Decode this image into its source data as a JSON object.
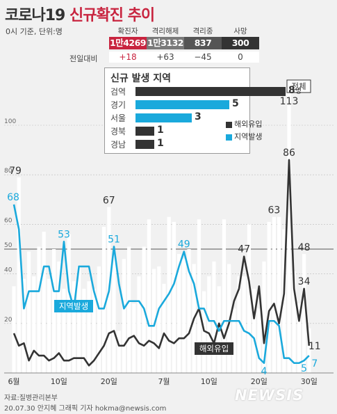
{
  "header": {
    "title_main": "코로나19 ",
    "title_red": "신규확진 추이",
    "subtitle": "0시 기준, 단위:명"
  },
  "stats": [
    {
      "label": "확진자",
      "value": "1만4269",
      "diff": "+18",
      "color": "#c8243f",
      "diff_color": "#c8243f"
    },
    {
      "label": "격리해제",
      "value": "1만3132",
      "diff": "+63",
      "color": "#7a7a7a",
      "diff_color": "#444444"
    },
    {
      "label": "격리중",
      "value": "837",
      "diff": "−45",
      "color": "#555555",
      "diff_color": "#444444"
    },
    {
      "label": "사망",
      "value": "300",
      "diff": "0",
      "color": "#333333",
      "diff_color": "#444444"
    }
  ],
  "diff_header": "전일대비",
  "regions": {
    "title": "신규 발생 지역",
    "unit": "명",
    "items": [
      {
        "name": "검역",
        "value": 8,
        "color": "#333333"
      },
      {
        "name": "경기",
        "value": 5,
        "color": "#1aa9dc"
      },
      {
        "name": "서울",
        "value": 3,
        "color": "#1aa9dc"
      },
      {
        "name": "경북",
        "value": 1,
        "color": "#333333"
      },
      {
        "name": "경남",
        "value": 1,
        "color": "#333333"
      }
    ]
  },
  "legend": {
    "overseas": "해외유입",
    "local": "지역발생"
  },
  "series_labels": {
    "total": "전체",
    "local": "지역발생",
    "overseas": "해외유입"
  },
  "colors": {
    "total_bar": "#ffffff",
    "local_line": "#1aa9dc",
    "overseas_line": "#333333",
    "accent_red": "#c8243f"
  },
  "footer": {
    "source": "자료:질병관리본부",
    "credit": "20.07.30 안지혜 그래픽 기자 hokma@newsis.com",
    "logo": "NEWSIS"
  },
  "chart_data": {
    "type": "bar",
    "period": "2020-06-01 to 2020-07-30",
    "x_tick_labels": [
      "6월",
      "10일",
      "20일",
      "7월",
      "10일",
      "20일",
      "30일"
    ],
    "x_tick_days": [
      1,
      10,
      20,
      31,
      40,
      50,
      60
    ],
    "y_tick_labels": [
      "100",
      "80",
      "60",
      "50",
      "40",
      "20"
    ],
    "y_ticks": [
      100,
      80,
      60,
      50,
      40,
      20
    ],
    "ylim": [
      0,
      120
    ],
    "reference_line": 50,
    "total_values": [
      35,
      79,
      38,
      49,
      39,
      51,
      57,
      38,
      50,
      45,
      34,
      56,
      37,
      43,
      34,
      37,
      34,
      43,
      59,
      67,
      48,
      17,
      46,
      51,
      28,
      39,
      51,
      62,
      42,
      43,
      36,
      63,
      61,
      48,
      46,
      50,
      44,
      62,
      33,
      39,
      45,
      35,
      62,
      44,
      26,
      39,
      39,
      60,
      34,
      26,
      45,
      61,
      63,
      63,
      58,
      113,
      41,
      28,
      48,
      18
    ],
    "local_values": [
      68,
      58,
      26,
      33,
      33,
      33,
      43,
      43,
      33,
      33,
      53,
      33,
      26,
      43,
      43,
      43,
      33,
      26,
      26,
      33,
      51,
      36,
      26,
      29,
      29,
      29,
      26,
      19,
      19,
      26,
      29,
      32,
      36,
      43,
      49,
      41,
      36,
      26,
      26,
      21,
      21,
      17,
      21,
      21,
      21,
      21,
      17,
      16,
      14,
      6,
      4,
      21,
      21,
      19,
      6,
      6,
      4,
      4,
      5,
      7
    ],
    "overseas_values": [
      16,
      11,
      12,
      5,
      9,
      7,
      7,
      5,
      6,
      8,
      5,
      5,
      6,
      6,
      6,
      3,
      5,
      8,
      11,
      16,
      17,
      11,
      11,
      14,
      15,
      12,
      11,
      13,
      12,
      10,
      16,
      13,
      12,
      14,
      14,
      16,
      22,
      26,
      17,
      16,
      12,
      20,
      14,
      20,
      29,
      34,
      47,
      37,
      22,
      35,
      12,
      25,
      28,
      20,
      32,
      86,
      34,
      21,
      34,
      11
    ],
    "data_labels": [
      {
        "series": "total",
        "day": 2,
        "value": 79
      },
      {
        "series": "total",
        "day": 20,
        "value": 67
      },
      {
        "series": "total",
        "day": 53,
        "value": 63
      },
      {
        "series": "total",
        "day": 56,
        "value": 113
      },
      {
        "series": "total",
        "day": 59,
        "value": 48
      },
      {
        "series": "local",
        "day": 1,
        "value": 68
      },
      {
        "series": "local",
        "day": 11,
        "value": 53
      },
      {
        "series": "local",
        "day": 21,
        "value": 51
      },
      {
        "series": "local",
        "day": 35,
        "value": 49
      },
      {
        "series": "local",
        "day": 51,
        "value": 4
      },
      {
        "series": "local",
        "day": 59,
        "value": 5
      },
      {
        "series": "local",
        "day": 60,
        "value": 7
      },
      {
        "series": "overseas",
        "day": 47,
        "value": 47
      },
      {
        "series": "overseas",
        "day": 56,
        "value": 86
      },
      {
        "series": "overseas",
        "day": 59,
        "value": 34
      },
      {
        "series": "overseas",
        "day": 60,
        "value": 11
      }
    ]
  }
}
